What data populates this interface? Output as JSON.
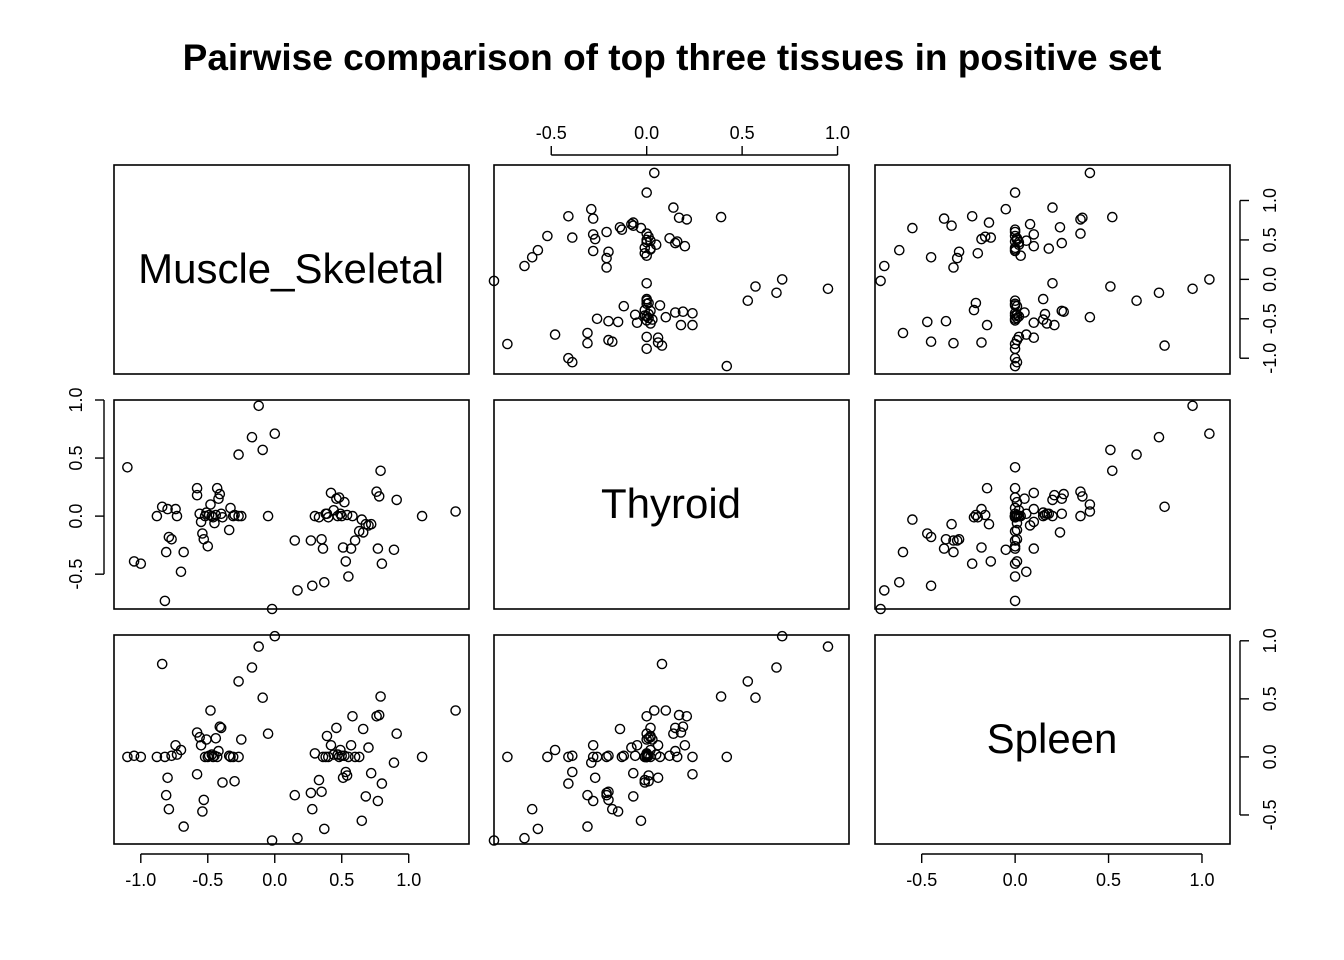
{
  "chart_data": {
    "type": "scatter",
    "title": "Pairwise comparison of top three tissues in positive set",
    "variables": [
      "Muscle_Skeletal",
      "Thyroid",
      "Spleen"
    ],
    "axes": {
      "Muscle_Skeletal": {
        "ticks": [
          -1.0,
          -0.5,
          0.0,
          0.5,
          1.0
        ],
        "tick_labels": [
          "-1.0",
          "-0.5",
          "0.0",
          "0.5",
          "1.0"
        ]
      },
      "Thyroid": {
        "ticks": [
          -0.5,
          0.0,
          0.5,
          1.0
        ],
        "tick_labels": [
          "-0.5",
          "0.0",
          "0.5",
          "1.0"
        ]
      },
      "Spleen": {
        "ticks": [
          -0.5,
          0.0,
          0.5,
          1.0
        ],
        "tick_labels": [
          "-0.5",
          "0.0",
          "0.5",
          "1.0"
        ]
      }
    },
    "ylim": {
      "Muscle_Skeletal": [
        -1.2,
        1.45
      ],
      "Thyroid": [
        -0.8,
        1.0
      ],
      "Spleen": [
        -0.75,
        1.05
      ]
    },
    "xlim": {
      "Muscle_Skeletal": [
        -1.2,
        1.45
      ],
      "Thyroid": [
        -0.8,
        1.06
      ],
      "Spleen": [
        -0.75,
        1.15
      ]
    },
    "observations": [
      {
        "Muscle_Skeletal": -1.1,
        "Thyroid": 0.42,
        "Spleen": 0.0
      },
      {
        "Muscle_Skeletal": -1.05,
        "Thyroid": -0.39,
        "Spleen": 0.01
      },
      {
        "Muscle_Skeletal": -1.0,
        "Thyroid": -0.41,
        "Spleen": 0.0
      },
      {
        "Muscle_Skeletal": -0.88,
        "Thyroid": 0.0,
        "Spleen": 0.0
      },
      {
        "Muscle_Skeletal": -0.84,
        "Thyroid": 0.08,
        "Spleen": 0.8
      },
      {
        "Muscle_Skeletal": -0.82,
        "Thyroid": -0.73,
        "Spleen": 0.0
      },
      {
        "Muscle_Skeletal": -0.8,
        "Thyroid": 0.06,
        "Spleen": -0.18
      },
      {
        "Muscle_Skeletal": -0.81,
        "Thyroid": -0.31,
        "Spleen": -0.33
      },
      {
        "Muscle_Skeletal": -0.79,
        "Thyroid": -0.18,
        "Spleen": -0.45
      },
      {
        "Muscle_Skeletal": -0.77,
        "Thyroid": -0.2,
        "Spleen": 0.01
      },
      {
        "Muscle_Skeletal": -0.74,
        "Thyroid": 0.06,
        "Spleen": 0.1
      },
      {
        "Muscle_Skeletal": -0.73,
        "Thyroid": 0.0,
        "Spleen": 0.02
      },
      {
        "Muscle_Skeletal": -0.7,
        "Thyroid": -0.48,
        "Spleen": 0.06
      },
      {
        "Muscle_Skeletal": -0.68,
        "Thyroid": -0.31,
        "Spleen": -0.6
      },
      {
        "Muscle_Skeletal": -0.58,
        "Thyroid": 0.24,
        "Spleen": -0.15
      },
      {
        "Muscle_Skeletal": -0.58,
        "Thyroid": 0.18,
        "Spleen": 0.21
      },
      {
        "Muscle_Skeletal": -0.56,
        "Thyroid": 0.02,
        "Spleen": 0.17
      },
      {
        "Muscle_Skeletal": -0.55,
        "Thyroid": -0.05,
        "Spleen": 0.1
      },
      {
        "Muscle_Skeletal": -0.54,
        "Thyroid": -0.15,
        "Spleen": -0.47
      },
      {
        "Muscle_Skeletal": -0.53,
        "Thyroid": -0.2,
        "Spleen": -0.37
      },
      {
        "Muscle_Skeletal": -0.52,
        "Thyroid": 0.0,
        "Spleen": 0.0
      },
      {
        "Muscle_Skeletal": -0.51,
        "Thyroid": 0.03,
        "Spleen": 0.15
      },
      {
        "Muscle_Skeletal": -0.5,
        "Thyroid": -0.26,
        "Spleen": 0.0
      },
      {
        "Muscle_Skeletal": -0.49,
        "Thyroid": 0.01,
        "Spleen": 0.01
      },
      {
        "Muscle_Skeletal": -0.48,
        "Thyroid": 0.1,
        "Spleen": 0.4
      },
      {
        "Muscle_Skeletal": -0.47,
        "Thyroid": 0.0,
        "Spleen": 0.02
      },
      {
        "Muscle_Skeletal": -0.46,
        "Thyroid": -0.01,
        "Spleen": 0.0
      },
      {
        "Muscle_Skeletal": -0.45,
        "Thyroid": -0.06,
        "Spleen": 0.01
      },
      {
        "Muscle_Skeletal": -0.44,
        "Thyroid": 0.01,
        "Spleen": 0.16
      },
      {
        "Muscle_Skeletal": -0.43,
        "Thyroid": 0.24,
        "Spleen": 0.0
      },
      {
        "Muscle_Skeletal": -0.42,
        "Thyroid": 0.15,
        "Spleen": 0.05
      },
      {
        "Muscle_Skeletal": -0.41,
        "Thyroid": 0.19,
        "Spleen": 0.26
      },
      {
        "Muscle_Skeletal": -0.4,
        "Thyroid": 0.02,
        "Spleen": 0.25
      },
      {
        "Muscle_Skeletal": -0.39,
        "Thyroid": -0.01,
        "Spleen": -0.22
      },
      {
        "Muscle_Skeletal": -0.34,
        "Thyroid": -0.12,
        "Spleen": 0.01
      },
      {
        "Muscle_Skeletal": -0.33,
        "Thyroid": 0.07,
        "Spleen": 0.0
      },
      {
        "Muscle_Skeletal": -0.31,
        "Thyroid": 0.0,
        "Spleen": 0.0
      },
      {
        "Muscle_Skeletal": -0.3,
        "Thyroid": 0.01,
        "Spleen": -0.21
      },
      {
        "Muscle_Skeletal": -0.27,
        "Thyroid": 0.0,
        "Spleen": 0.0
      },
      {
        "Muscle_Skeletal": -0.27,
        "Thyroid": 0.53,
        "Spleen": 0.65
      },
      {
        "Muscle_Skeletal": -0.25,
        "Thyroid": 0.0,
        "Spleen": 0.15
      },
      {
        "Muscle_Skeletal": -0.17,
        "Thyroid": 0.68,
        "Spleen": 0.77
      },
      {
        "Muscle_Skeletal": -0.12,
        "Thyroid": 0.95,
        "Spleen": 0.95
      },
      {
        "Muscle_Skeletal": -0.09,
        "Thyroid": 0.57,
        "Spleen": 0.51
      },
      {
        "Muscle_Skeletal": -0.05,
        "Thyroid": 0.0,
        "Spleen": 0.2
      },
      {
        "Muscle_Skeletal": 0.0,
        "Thyroid": 0.71,
        "Spleen": 1.04
      },
      {
        "Muscle_Skeletal": -0.02,
        "Thyroid": -0.8,
        "Spleen": -0.72
      },
      {
        "Muscle_Skeletal": 0.15,
        "Thyroid": -0.21,
        "Spleen": -0.33
      },
      {
        "Muscle_Skeletal": 0.17,
        "Thyroid": -0.64,
        "Spleen": -0.7
      },
      {
        "Muscle_Skeletal": 0.27,
        "Thyroid": -0.21,
        "Spleen": -0.31
      },
      {
        "Muscle_Skeletal": 0.28,
        "Thyroid": -0.6,
        "Spleen": -0.45
      },
      {
        "Muscle_Skeletal": 0.3,
        "Thyroid": 0.0,
        "Spleen": 0.03
      },
      {
        "Muscle_Skeletal": 0.33,
        "Thyroid": -0.01,
        "Spleen": -0.2
      },
      {
        "Muscle_Skeletal": 0.35,
        "Thyroid": -0.2,
        "Spleen": -0.3
      },
      {
        "Muscle_Skeletal": 0.36,
        "Thyroid": -0.28,
        "Spleen": 0.0
      },
      {
        "Muscle_Skeletal": 0.37,
        "Thyroid": -0.57,
        "Spleen": -0.62
      },
      {
        "Muscle_Skeletal": 0.38,
        "Thyroid": 0.02,
        "Spleen": 0.0
      },
      {
        "Muscle_Skeletal": 0.39,
        "Thyroid": 0.02,
        "Spleen": 0.18
      },
      {
        "Muscle_Skeletal": 0.4,
        "Thyroid": -0.01,
        "Spleen": 0.0
      },
      {
        "Muscle_Skeletal": 0.42,
        "Thyroid": 0.2,
        "Spleen": 0.1
      },
      {
        "Muscle_Skeletal": 0.44,
        "Thyroid": 0.05,
        "Spleen": 0.02
      },
      {
        "Muscle_Skeletal": 0.46,
        "Thyroid": 0.15,
        "Spleen": 0.25
      },
      {
        "Muscle_Skeletal": 0.47,
        "Thyroid": 0.0,
        "Spleen": 0.02
      },
      {
        "Muscle_Skeletal": 0.48,
        "Thyroid": 0.16,
        "Spleen": 0.0
      },
      {
        "Muscle_Skeletal": 0.49,
        "Thyroid": 0.02,
        "Spleen": 0.06
      },
      {
        "Muscle_Skeletal": 0.5,
        "Thyroid": 0.0,
        "Spleen": 0.01
      },
      {
        "Muscle_Skeletal": 0.51,
        "Thyroid": -0.27,
        "Spleen": -0.18
      },
      {
        "Muscle_Skeletal": 0.52,
        "Thyroid": 0.12,
        "Spleen": 0.01
      },
      {
        "Muscle_Skeletal": 0.53,
        "Thyroid": -0.39,
        "Spleen": -0.13
      },
      {
        "Muscle_Skeletal": 0.54,
        "Thyroid": 0.01,
        "Spleen": -0.16
      },
      {
        "Muscle_Skeletal": 0.55,
        "Thyroid": -0.52,
        "Spleen": 0.0
      },
      {
        "Muscle_Skeletal": 0.57,
        "Thyroid": -0.28,
        "Spleen": 0.1
      },
      {
        "Muscle_Skeletal": 0.58,
        "Thyroid": 0.0,
        "Spleen": 0.35
      },
      {
        "Muscle_Skeletal": 0.6,
        "Thyroid": -0.21,
        "Spleen": 0.0
      },
      {
        "Muscle_Skeletal": 0.63,
        "Thyroid": -0.13,
        "Spleen": 0.0
      },
      {
        "Muscle_Skeletal": 0.65,
        "Thyroid": -0.03,
        "Spleen": -0.55
      },
      {
        "Muscle_Skeletal": 0.66,
        "Thyroid": -0.14,
        "Spleen": 0.24
      },
      {
        "Muscle_Skeletal": 0.68,
        "Thyroid": -0.07,
        "Spleen": -0.34
      },
      {
        "Muscle_Skeletal": 0.7,
        "Thyroid": -0.08,
        "Spleen": 0.08
      },
      {
        "Muscle_Skeletal": 0.72,
        "Thyroid": -0.07,
        "Spleen": -0.14
      },
      {
        "Muscle_Skeletal": 0.76,
        "Thyroid": 0.21,
        "Spleen": 0.35
      },
      {
        "Muscle_Skeletal": 0.77,
        "Thyroid": -0.28,
        "Spleen": -0.38
      },
      {
        "Muscle_Skeletal": 0.78,
        "Thyroid": 0.17,
        "Spleen": 0.36
      },
      {
        "Muscle_Skeletal": 0.79,
        "Thyroid": 0.39,
        "Spleen": 0.52
      },
      {
        "Muscle_Skeletal": 0.8,
        "Thyroid": -0.41,
        "Spleen": -0.23
      },
      {
        "Muscle_Skeletal": 0.89,
        "Thyroid": -0.29,
        "Spleen": -0.05
      },
      {
        "Muscle_Skeletal": 0.91,
        "Thyroid": 0.14,
        "Spleen": 0.2
      },
      {
        "Muscle_Skeletal": 1.1,
        "Thyroid": 0.0,
        "Spleen": 0.0
      },
      {
        "Muscle_Skeletal": 1.35,
        "Thyroid": 0.04,
        "Spleen": 0.4
      }
    ]
  }
}
